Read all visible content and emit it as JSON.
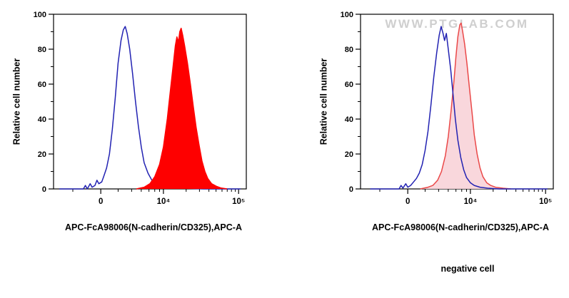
{
  "page": {
    "background": "#ffffff"
  },
  "annotations": {
    "watermark": "WWW.PTGLAB.COM",
    "negative_cell_label": "negative cell"
  },
  "colors": {
    "blue_line": "#2222b2",
    "red_fill": "#fe0000",
    "pink_fill": "#f8d3d8",
    "pink_stroke": "#ea4848",
    "axis": "#000000",
    "watermark": "#cfcfcf"
  },
  "chart_data": [
    {
      "type": "area",
      "flavor": "flow-cytometry-histogram",
      "title": "",
      "xlabel": "APC-FcA98006(N-cadherin/CD325),APC-A",
      "ylabel": "Relative cell number",
      "ylim": [
        0,
        100
      ],
      "yticks": [
        0,
        20,
        40,
        60,
        80,
        100
      ],
      "y_minor_ticks": [
        10,
        30,
        50,
        70,
        90
      ],
      "x_axis": {
        "scale": "logicle",
        "major_ticks": [
          {
            "pos": 0.245,
            "label": "0"
          },
          {
            "pos": 0.57,
            "label": "10⁴"
          },
          {
            "pos": 0.96,
            "label": "10⁵"
          }
        ],
        "minor_ticks": [
          0.1,
          0.335,
          0.405,
          0.455,
          0.495,
          0.525,
          0.55,
          0.688,
          0.757,
          0.806,
          0.843,
          0.874,
          0.901,
          0.923,
          0.943
        ]
      },
      "series": [
        {
          "name": "unstained control (blue open histogram)",
          "color": "#2222b2",
          "fill": "none",
          "peak_y": 93,
          "points": [
            [
              0.03,
              0
            ],
            [
              0.155,
              0
            ],
            [
              0.165,
              2
            ],
            [
              0.175,
              0
            ],
            [
              0.19,
              3
            ],
            [
              0.2,
              1
            ],
            [
              0.215,
              2
            ],
            [
              0.225,
              5
            ],
            [
              0.235,
              3
            ],
            [
              0.25,
              4
            ],
            [
              0.26,
              7
            ],
            [
              0.275,
              12
            ],
            [
              0.29,
              20
            ],
            [
              0.305,
              34
            ],
            [
              0.32,
              52
            ],
            [
              0.335,
              72
            ],
            [
              0.35,
              85
            ],
            [
              0.362,
              91
            ],
            [
              0.372,
              93
            ],
            [
              0.382,
              89
            ],
            [
              0.395,
              80
            ],
            [
              0.41,
              66
            ],
            [
              0.425,
              50
            ],
            [
              0.44,
              36
            ],
            [
              0.455,
              24
            ],
            [
              0.47,
              15
            ],
            [
              0.49,
              9
            ],
            [
              0.51,
              5
            ],
            [
              0.54,
              3
            ],
            [
              0.58,
              1.5
            ],
            [
              0.63,
              0.8
            ],
            [
              0.7,
              0.3
            ],
            [
              0.78,
              0
            ],
            [
              0.97,
              0
            ]
          ]
        },
        {
          "name": "N-cadherin/CD325 stained (red filled histogram)",
          "color": "#fe0000",
          "fill": "#fe0000",
          "fill_opacity": 1,
          "peak_y": 92,
          "points": [
            [
              0.43,
              0
            ],
            [
              0.47,
              1
            ],
            [
              0.5,
              3
            ],
            [
              0.525,
              7
            ],
            [
              0.55,
              14
            ],
            [
              0.57,
              24
            ],
            [
              0.59,
              40
            ],
            [
              0.605,
              55
            ],
            [
              0.62,
              70
            ],
            [
              0.632,
              82
            ],
            [
              0.64,
              87
            ],
            [
              0.648,
              84
            ],
            [
              0.655,
              90
            ],
            [
              0.662,
              92
            ],
            [
              0.67,
              88
            ],
            [
              0.68,
              82
            ],
            [
              0.695,
              72
            ],
            [
              0.71,
              60
            ],
            [
              0.725,
              47
            ],
            [
              0.74,
              35
            ],
            [
              0.755,
              25
            ],
            [
              0.77,
              16
            ],
            [
              0.785,
              10
            ],
            [
              0.8,
              6
            ],
            [
              0.82,
              3
            ],
            [
              0.845,
              1.5
            ],
            [
              0.87,
              0.5
            ],
            [
              0.9,
              0
            ]
          ]
        }
      ]
    },
    {
      "type": "area",
      "flavor": "flow-cytometry-histogram",
      "title": "",
      "xlabel": "APC-FcA98006(N-cadherin/CD325),APC-A",
      "ylabel": "Relative cell number",
      "ylim": [
        0,
        100
      ],
      "yticks": [
        0,
        20,
        40,
        60,
        80,
        100
      ],
      "y_minor_ticks": [
        10,
        30,
        50,
        70,
        90
      ],
      "x_axis": {
        "scale": "logicle",
        "major_ticks": [
          {
            "pos": 0.245,
            "label": "0"
          },
          {
            "pos": 0.57,
            "label": "10⁴"
          },
          {
            "pos": 0.96,
            "label": "10⁵"
          }
        ],
        "minor_ticks": [
          0.1,
          0.335,
          0.405,
          0.455,
          0.495,
          0.525,
          0.55,
          0.688,
          0.757,
          0.806,
          0.843,
          0.874,
          0.901,
          0.923,
          0.943
        ]
      },
      "series": [
        {
          "name": "negative cell stained (pink filled, red outline)",
          "color": "#ea4848",
          "fill": "#f8d3d8",
          "fill_opacity": 0.9,
          "peak_y": 95,
          "points": [
            [
              0.31,
              0
            ],
            [
              0.35,
              1
            ],
            [
              0.375,
              2
            ],
            [
              0.4,
              5
            ],
            [
              0.42,
              10
            ],
            [
              0.44,
              19
            ],
            [
              0.455,
              30
            ],
            [
              0.47,
              45
            ],
            [
              0.485,
              62
            ],
            [
              0.495,
              76
            ],
            [
              0.505,
              87
            ],
            [
              0.515,
              94
            ],
            [
              0.522,
              95
            ],
            [
              0.53,
              90
            ],
            [
              0.54,
              83
            ],
            [
              0.552,
              72
            ],
            [
              0.565,
              58
            ],
            [
              0.578,
              44
            ],
            [
              0.59,
              31
            ],
            [
              0.605,
              20
            ],
            [
              0.62,
              12
            ],
            [
              0.635,
              7
            ],
            [
              0.655,
              3.5
            ],
            [
              0.675,
              2
            ],
            [
              0.7,
              1
            ],
            [
              0.74,
              0.4
            ],
            [
              0.78,
              0
            ]
          ]
        },
        {
          "name": "unstained control (blue open histogram)",
          "color": "#2222b2",
          "fill": "none",
          "peak_y": 93,
          "points": [
            [
              0.05,
              0
            ],
            [
              0.2,
              0
            ],
            [
              0.21,
              2
            ],
            [
              0.22,
              0.5
            ],
            [
              0.235,
              3
            ],
            [
              0.245,
              1
            ],
            [
              0.26,
              2
            ],
            [
              0.275,
              4
            ],
            [
              0.29,
              6
            ],
            [
              0.305,
              9
            ],
            [
              0.32,
              14
            ],
            [
              0.335,
              22
            ],
            [
              0.35,
              33
            ],
            [
              0.365,
              48
            ],
            [
              0.38,
              64
            ],
            [
              0.395,
              78
            ],
            [
              0.408,
              88
            ],
            [
              0.418,
              93
            ],
            [
              0.428,
              89
            ],
            [
              0.436,
              85
            ],
            [
              0.445,
              89
            ],
            [
              0.455,
              80
            ],
            [
              0.468,
              68
            ],
            [
              0.48,
              54
            ],
            [
              0.492,
              40
            ],
            [
              0.505,
              28
            ],
            [
              0.52,
              18
            ],
            [
              0.535,
              11
            ],
            [
              0.55,
              6.5
            ],
            [
              0.57,
              3.5
            ],
            [
              0.59,
              2
            ],
            [
              0.62,
              1
            ],
            [
              0.66,
              0.4
            ],
            [
              0.72,
              0
            ],
            [
              0.97,
              0
            ]
          ]
        }
      ]
    }
  ]
}
